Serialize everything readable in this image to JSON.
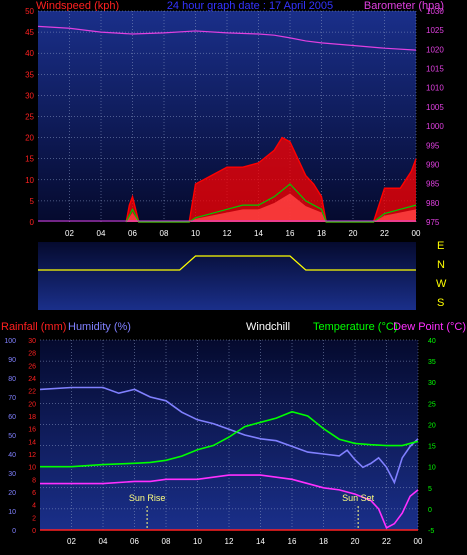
{
  "header": {
    "left": "Windspeed (kph)",
    "center": "24 hour graph date : 17 April 2005",
    "right": "Barometer (hpa)"
  },
  "colors": {
    "windspeed_label": "#ff2020",
    "barometer": "#e040e0",
    "gust": "#ff0000",
    "average": "#00cc00",
    "wind_fill": "#ffffff",
    "direction": "#ffff00",
    "humidity": "#8080ff",
    "temperature": "#00ff00",
    "dewpoint": "#ff30ff",
    "rainfall": "#ff2020",
    "windchill": "#ffffff",
    "plot_bg_top": "#1a2f8a",
    "plot_bg_bottom": "#060b33",
    "sun_marker": "#ffff80"
  },
  "x_tick_labels": [
    "02",
    "04",
    "06",
    "08",
    "10",
    "12",
    "14",
    "16",
    "18",
    "20",
    "22",
    "00"
  ],
  "direction_labels": [
    "E",
    "N",
    "W",
    "S"
  ],
  "lower_header": {
    "rainfall": "Rainfall (mm)",
    "humidity": "Humidity (%)",
    "windchill": "Windchill",
    "temperature": "Temperature (°C)",
    "dewpoint": "Dew Point (°C)"
  },
  "sun": {
    "rise_label": "Sun Rise",
    "set_label": "Sun Set"
  },
  "chart_data": [
    {
      "type": "line",
      "title": "24 hour graph date : 17 April 2005",
      "ylabel": "Windspeed (kph)",
      "ylim": [
        0,
        50
      ],
      "y_ticks": [
        0,
        5,
        10,
        15,
        20,
        25,
        30,
        35,
        40,
        45,
        50
      ],
      "y2label": "Barometer (hpa)",
      "y2lim": [
        975,
        1030
      ],
      "y2_ticks": [
        975,
        980,
        985,
        990,
        995,
        1000,
        1005,
        1010,
        1015,
        1020,
        1025,
        1030
      ],
      "xlim": [
        0,
        24
      ],
      "x_ticks": [
        "02",
        "04",
        "06",
        "08",
        "10",
        "12",
        "14",
        "16",
        "18",
        "20",
        "22",
        "00"
      ],
      "series": [
        {
          "name": "Barometer (hpa)",
          "axis": "right",
          "x": [
            0,
            2,
            4,
            6,
            8,
            10,
            12,
            14,
            15,
            16,
            17,
            18,
            20,
            22,
            24
          ],
          "y": [
            1026,
            1025.5,
            1024.5,
            1024,
            1024.3,
            1024.8,
            1024.3,
            1024,
            1023.7,
            1023,
            1022.2,
            1021.7,
            1021,
            1020.3,
            1019.8
          ]
        },
        {
          "name": "Gust",
          "axis": "left",
          "x": [
            5.6,
            5.8,
            6.0,
            6.2,
            6.4,
            9.6,
            10,
            11,
            12,
            13,
            14,
            15,
            15.5,
            16,
            16.5,
            17,
            17.5,
            18,
            18.3,
            21.3,
            22,
            23,
            23.7,
            24
          ],
          "y": [
            0,
            4,
            6,
            3,
            0,
            0,
            9,
            11,
            13,
            13,
            14,
            17,
            20,
            19,
            15,
            11,
            9,
            6,
            0,
            0,
            8,
            8,
            12,
            15
          ]
        },
        {
          "name": "Average",
          "axis": "left",
          "x": [
            5.6,
            6.0,
            6.4,
            9.6,
            10,
            11,
            12,
            13,
            14,
            15,
            16,
            17,
            18,
            18.3,
            21.3,
            22,
            23,
            24
          ],
          "y": [
            0,
            3,
            0,
            0,
            1,
            2,
            3,
            4,
            4,
            6,
            9,
            5,
            3,
            0,
            0,
            2,
            3,
            4
          ]
        }
      ]
    },
    {
      "type": "line",
      "ylabel": "Wind direction",
      "x": [
        0,
        5,
        6,
        9,
        10,
        12,
        14,
        16,
        17,
        18,
        20,
        22,
        24
      ],
      "y": [
        "E",
        "E",
        "E",
        "E",
        "N",
        "N",
        "N",
        "N",
        "E",
        "E",
        "E",
        "E",
        "E"
      ]
    },
    {
      "type": "line",
      "xlim": [
        0,
        24
      ],
      "x_ticks": [
        "02",
        "04",
        "06",
        "08",
        "10",
        "12",
        "14",
        "16",
        "18",
        "20",
        "22",
        "00"
      ],
      "ylabel_left_outer": "Rainfall (mm)",
      "rainfall_ylim": [
        0,
        30
      ],
      "rainfall_ticks": [
        0,
        2,
        4,
        6,
        8,
        10,
        12,
        14,
        16,
        18,
        20,
        22,
        24,
        26,
        28,
        30
      ],
      "ylabel_left_inner": "Humidity (%)",
      "humidity_ylim": [
        0,
        100
      ],
      "humidity_ticks": [
        0,
        10,
        20,
        30,
        40,
        50,
        60,
        70,
        80,
        90,
        100
      ],
      "ylabel_right": "Temperature (°C)",
      "temperature_ylim": [
        -5,
        40
      ],
      "temperature_ticks": [
        -5,
        0,
        5,
        10,
        15,
        20,
        25,
        30,
        35,
        40
      ],
      "series": [
        {
          "name": "Humidity (%)",
          "axis": "humidity",
          "x": [
            0,
            2,
            4,
            5,
            6,
            7,
            8,
            9,
            10,
            11,
            12,
            13,
            14,
            15,
            16,
            17,
            18,
            19,
            19.5,
            20,
            20.5,
            21,
            21.5,
            22,
            22.5,
            23,
            23.5,
            24
          ],
          "y": [
            74,
            75,
            75,
            72,
            74,
            70,
            68,
            62,
            58,
            56,
            53,
            50,
            48,
            47,
            44,
            41,
            40,
            39,
            42,
            37,
            33,
            35,
            38,
            33,
            25,
            38,
            44,
            48
          ]
        },
        {
          "name": "Temperature (°C)",
          "axis": "temperature",
          "x": [
            0,
            2,
            4,
            6,
            7,
            8,
            9,
            10,
            11,
            12,
            13,
            14,
            15,
            16,
            17,
            18,
            19,
            20,
            21,
            22,
            23,
            24
          ],
          "y": [
            10,
            10,
            10.5,
            10.8,
            11,
            11.5,
            12.5,
            14,
            15,
            17,
            19.5,
            20.5,
            21.5,
            23,
            22,
            19,
            16.5,
            15.5,
            15.2,
            15,
            15,
            16
          ]
        },
        {
          "name": "Dew Point (°C)",
          "axis": "temperature",
          "x": [
            0,
            2,
            4,
            6,
            7,
            8,
            9,
            10,
            11,
            12,
            13,
            14,
            15,
            16,
            17,
            18,
            19,
            20,
            21,
            21.5,
            22,
            22.5,
            23,
            23.5,
            24
          ],
          "y": [
            6,
            6,
            6,
            6.5,
            6.5,
            7,
            7,
            7,
            7.5,
            8,
            8,
            8,
            7.5,
            7,
            6,
            5,
            4.5,
            3.5,
            2,
            0,
            -4.5,
            -3.5,
            -1,
            3,
            4.5
          ]
        },
        {
          "name": "Rainfall (mm)",
          "axis": "rainfall",
          "x": [
            0,
            24
          ],
          "y": [
            0,
            0
          ]
        }
      ],
      "annotations": [
        {
          "label": "Sun Rise",
          "x": 6.8
        },
        {
          "label": "Sun Set",
          "x": 20.2
        }
      ]
    }
  ]
}
